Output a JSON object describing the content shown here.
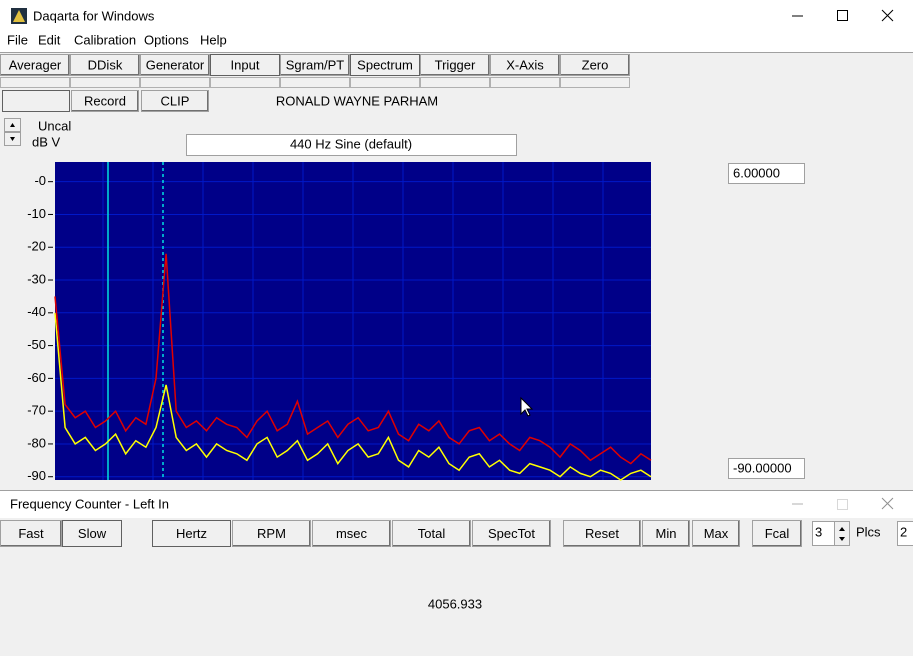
{
  "window": {
    "title": "Daqarta for Windows"
  },
  "menu": [
    "File",
    "Edit",
    "Calibration",
    "Options",
    "Help"
  ],
  "toolbar": [
    "Averager",
    "DDisk",
    "Generator",
    "Input",
    "Sgram/PT",
    "Spectrum",
    "Trigger",
    "X-Axis",
    "Zero"
  ],
  "toolbar2": {
    "record": "Record",
    "clip": "CLIP",
    "user": "RONALD WAYNE PARHAM"
  },
  "controls": {
    "unit_top": "Uncal",
    "unit_bottom": "dB V",
    "generator": "440 Hz Sine (default)",
    "top_value": "6.00000",
    "bottom_value": "-90.00000"
  },
  "chart_data": {
    "type": "line",
    "ylim": [
      -91,
      6
    ],
    "yticks": [
      {
        "value": 0,
        "label": "-0"
      },
      -10,
      -20,
      -30,
      -40,
      -50,
      -60,
      -70,
      -80,
      -90
    ],
    "grid": true,
    "series": [
      {
        "color": "#e00000",
        "values": [
          -35,
          -68,
          -72,
          -70,
          -75,
          -73,
          -70,
          -76,
          -72,
          -74,
          -60,
          -22,
          -70,
          -75,
          -73,
          -76,
          -72,
          -74,
          -75,
          -78,
          -73,
          -70,
          -76,
          -74,
          -67,
          -77,
          -75,
          -73,
          -78,
          -74,
          -72,
          -76,
          -75,
          -70,
          -77,
          -79,
          -74,
          -76,
          -73,
          -78,
          -80,
          -76,
          -75,
          -79,
          -77,
          -80,
          -82,
          -78,
          -79,
          -81,
          -84,
          -80,
          -82,
          -85,
          -83,
          -81,
          -84,
          -86,
          -83,
          -85
        ]
      },
      {
        "color": "#ffff00",
        "values": [
          -40,
          -75,
          -80,
          -78,
          -82,
          -80,
          -77,
          -83,
          -79,
          -81,
          -75,
          -62,
          -78,
          -82,
          -80,
          -84,
          -80,
          -82,
          -83,
          -85,
          -80,
          -78,
          -84,
          -82,
          -79,
          -85,
          -83,
          -80,
          -86,
          -82,
          -80,
          -84,
          -83,
          -78,
          -85,
          -87,
          -82,
          -84,
          -81,
          -86,
          -88,
          -84,
          -83,
          -87,
          -85,
          -88,
          -89,
          -86,
          -87,
          -88,
          -90,
          -87,
          -89,
          -90,
          -88,
          -89,
          -91,
          -89,
          -88,
          -90
        ]
      }
    ]
  },
  "counter": {
    "title": "Frequency Counter - Left In",
    "buttons": [
      "Fast",
      "Slow",
      "Hertz",
      "RPM",
      "msec",
      "Total",
      "SpecTot",
      "Reset",
      "Min",
      "Max",
      "Fcal"
    ],
    "places": "3",
    "places_label": "Plcs",
    "extra": "2",
    "reading": "4056.933"
  }
}
